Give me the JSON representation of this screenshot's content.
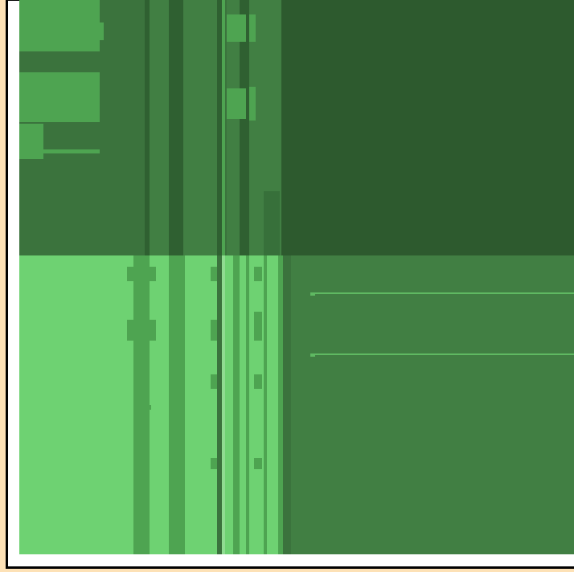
{
  "view": {
    "type": "treemap",
    "colors": {
      "outer_background": "#fde1b6",
      "frame_border": "#000000",
      "frame_inner": "#ffffff",
      "q_top_left": "#3b733d",
      "q_top_right": "#2d5a2e",
      "q_bottom_left": "#6ed272",
      "q_bottom_right": "#417f43",
      "mid_green": "#4ea451",
      "pale_green": "#8fdc91",
      "line_green": "#5fb962"
    }
  }
}
